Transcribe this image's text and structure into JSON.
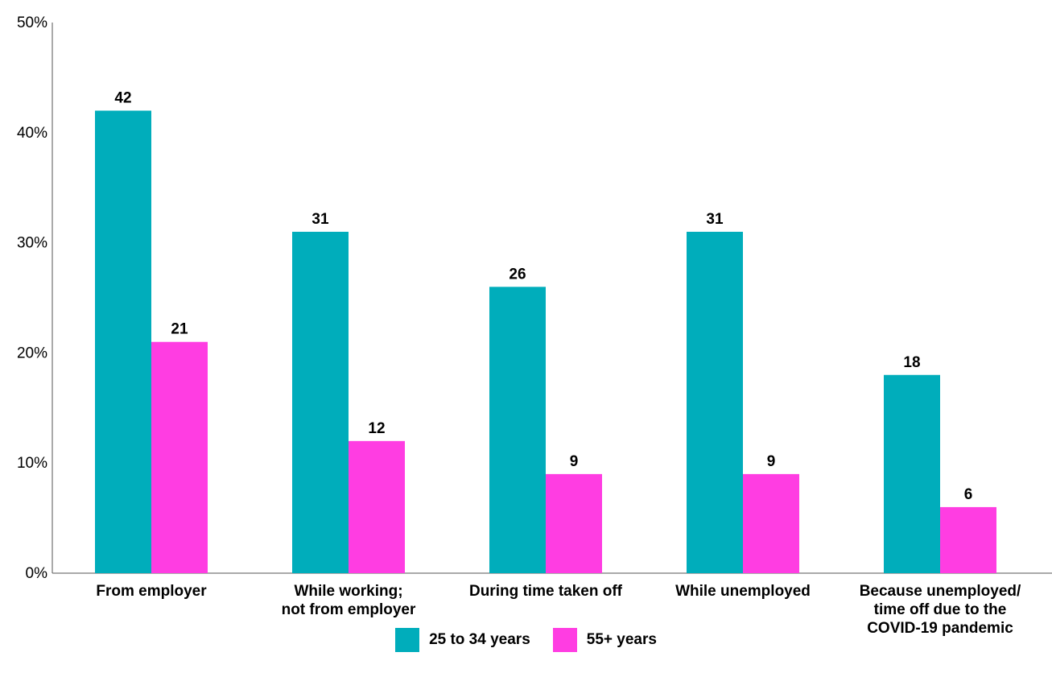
{
  "chart_data": {
    "type": "bar",
    "categories": [
      [
        "From employer"
      ],
      [
        "While working;",
        "not from employer"
      ],
      [
        "During time taken off"
      ],
      [
        "While unemployed"
      ],
      [
        "Because unemployed/",
        "time off due to the",
        "COVID-19 pandemic"
      ]
    ],
    "series": [
      {
        "name": "25 to 34 years",
        "color": "#00adbb",
        "values": [
          42,
          31,
          26,
          31,
          18
        ]
      },
      {
        "name": "55+ years",
        "color": "#ff3de2",
        "values": [
          21,
          12,
          9,
          9,
          6
        ]
      }
    ],
    "yticks": [
      "0%",
      "10%",
      "20%",
      "30%",
      "40%",
      "50%"
    ],
    "ylim": [
      0,
      50
    ],
    "grid": false,
    "legend_position": "bottom-center"
  }
}
